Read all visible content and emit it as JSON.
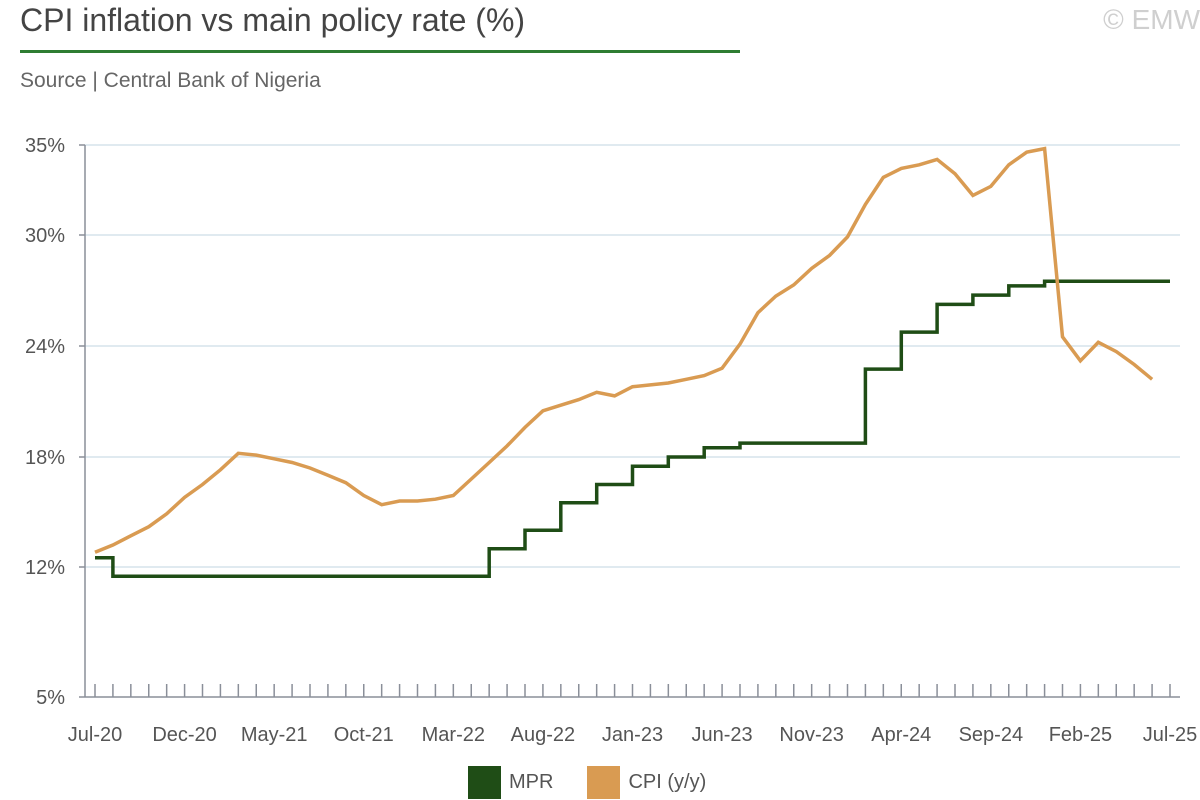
{
  "header": {
    "title": "CPI inflation vs main policy rate (%)",
    "subtitle": "Source | Central Bank of Nigeria",
    "copyright": "© EMW"
  },
  "chart_data": {
    "type": "line",
    "title": "CPI inflation vs main policy rate (%)",
    "y_ticks": [
      "5%",
      "12%",
      "18%",
      "24%",
      "30%",
      "35%"
    ],
    "x_tick_labels": [
      "Jul-20",
      "Dec-20",
      "May-21",
      "Oct-21",
      "Mar-22",
      "Aug-22",
      "Jan-23",
      "Jun-23",
      "Nov-23",
      "Apr-24",
      "Sep-24",
      "Feb-25",
      "Jul-25"
    ],
    "x": [
      "Jul-20",
      "Aug-20",
      "Sep-20",
      "Oct-20",
      "Nov-20",
      "Dec-20",
      "Jan-21",
      "Feb-21",
      "Mar-21",
      "Apr-21",
      "May-21",
      "Jun-21",
      "Jul-21",
      "Aug-21",
      "Sep-21",
      "Oct-21",
      "Nov-21",
      "Dec-21",
      "Jan-22",
      "Feb-22",
      "Mar-22",
      "Apr-22",
      "May-22",
      "Jun-22",
      "Jul-22",
      "Aug-22",
      "Sep-22",
      "Oct-22",
      "Nov-22",
      "Dec-22",
      "Jan-23",
      "Feb-23",
      "Mar-23",
      "Apr-23",
      "May-23",
      "Jun-23",
      "Jul-23",
      "Aug-23",
      "Sep-23",
      "Oct-23",
      "Nov-23",
      "Dec-23",
      "Jan-24",
      "Feb-24",
      "Mar-24",
      "Apr-24",
      "May-24",
      "Jun-24",
      "Jul-24",
      "Aug-24",
      "Sep-24",
      "Oct-24",
      "Nov-24",
      "Dec-24",
      "Jan-25",
      "Feb-25",
      "Mar-25",
      "Apr-25",
      "May-25",
      "Jun-25",
      "Jul-25"
    ],
    "grid": true,
    "legend_position": "bottom-center",
    "series": [
      {
        "name": "MPR",
        "color": "#1f4d16",
        "style": "step",
        "values": [
          12.5,
          11.5,
          11.5,
          11.5,
          11.5,
          11.5,
          11.5,
          11.5,
          11.5,
          11.5,
          11.5,
          11.5,
          11.5,
          11.5,
          11.5,
          11.5,
          11.5,
          11.5,
          11.5,
          11.5,
          11.5,
          11.5,
          13.0,
          13.0,
          14.0,
          14.0,
          15.5,
          15.5,
          16.5,
          16.5,
          17.5,
          17.5,
          18.0,
          18.0,
          18.5,
          18.5,
          18.75,
          18.75,
          18.75,
          18.75,
          18.75,
          18.75,
          18.75,
          22.75,
          22.75,
          24.75,
          24.75,
          26.25,
          26.25,
          26.75,
          26.75,
          27.25,
          27.25,
          27.5,
          27.5,
          27.5,
          27.5,
          27.5,
          27.5,
          27.5,
          27.5
        ]
      },
      {
        "name": "CPI (y/y)",
        "color": "#d99b52",
        "style": "line",
        "values": [
          12.8,
          13.2,
          13.7,
          14.2,
          14.9,
          15.8,
          16.5,
          17.3,
          18.2,
          18.1,
          17.9,
          17.7,
          17.4,
          17.0,
          16.6,
          15.9,
          15.4,
          15.6,
          15.6,
          15.7,
          15.9,
          16.8,
          17.7,
          18.6,
          19.6,
          20.5,
          20.8,
          21.1,
          21.5,
          21.3,
          21.8,
          21.9,
          22.0,
          22.2,
          22.4,
          22.8,
          24.1,
          25.8,
          26.7,
          27.3,
          28.2,
          28.9,
          29.9,
          31.7,
          33.2,
          33.7,
          33.9,
          34.2,
          33.4,
          32.2,
          32.7,
          33.9,
          34.6,
          34.8,
          24.5,
          23.2,
          24.2,
          23.7,
          23.0,
          22.2,
          null
        ]
      }
    ]
  }
}
